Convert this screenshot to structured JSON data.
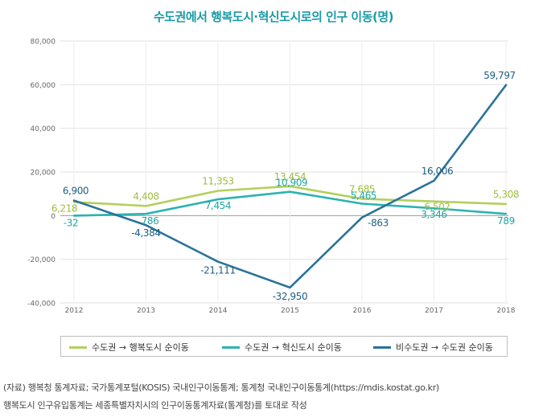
{
  "chart_data": {
    "type": "line",
    "title": "수도권에서 행복도시·혁신도시로의 인구 이동(명)",
    "categories": [
      "2012",
      "2013",
      "2014",
      "2015",
      "2016",
      "2017",
      "2018"
    ],
    "ylim": [
      -40000,
      80000
    ],
    "yticks": [
      -40000,
      -20000,
      0,
      20000,
      40000,
      60000,
      80000
    ],
    "ytick_labels": [
      "-40,000",
      "-20,000",
      "0",
      "20,000",
      "40,000",
      "60,000",
      "80,000"
    ],
    "xlabel": "",
    "ylabel": "",
    "grid": true,
    "series": [
      {
        "name": "수도권 → 행복도시 순이동",
        "color": "#b3d05c",
        "label_color": "#9cbf3c",
        "values": [
          6218,
          4408,
          11353,
          13454,
          7685,
          6502,
          5308
        ],
        "labels": [
          "6,218",
          "4,408",
          "11,353",
          "13,454",
          "7,685",
          "6,502",
          "5,308"
        ]
      },
      {
        "name": "수도권 → 혁신도시 순이동",
        "color": "#2bb3b1",
        "label_color": "#1fa5a3",
        "values": [
          -32,
          786,
          7454,
          10909,
          5465,
          3346,
          789
        ],
        "labels": [
          "-32",
          "786",
          "7,454",
          "10,909",
          "5,465",
          "3,346",
          "789"
        ]
      },
      {
        "name": "비수도권 → 수도권 순이동",
        "color": "#2a7399",
        "label_color": "#1f5f82",
        "values": [
          6900,
          -4384,
          -21111,
          -32950,
          -863,
          16006,
          59797
        ],
        "labels": [
          "6,900",
          "-4,384",
          "-21,111",
          "-32,950",
          "-863",
          "16,006",
          "59,797"
        ]
      }
    ],
    "legend_position": "bottom"
  },
  "notes": {
    "line1": "(자료) 행복청 통계자료; 국가통계포털(KOSIS) 국내인구이동통계; 통계청 국내인구이동통계(https://mdis.kostat.go.kr)",
    "line2": "행복도시 인구유입통계는 세종특별자치시의 인구이동통계자료(통계청)를 토대로 작성"
  }
}
